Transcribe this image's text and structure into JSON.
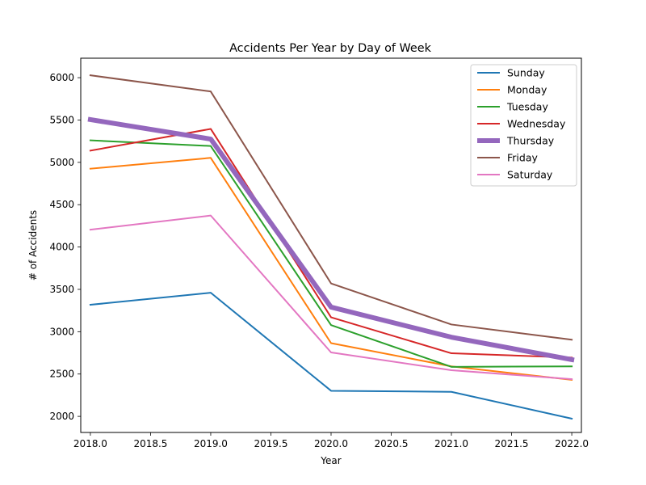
{
  "chart_data": {
    "type": "line",
    "title": "Accidents Per Year by Day of Week",
    "xlabel": "Year",
    "ylabel": "# of Accidents",
    "x": [
      2018,
      2019,
      2020,
      2021,
      2022
    ],
    "xlim": [
      2017.92,
      2022.08
    ],
    "ylim": [
      1810,
      6230
    ],
    "xticks": [
      2018.0,
      2018.5,
      2019.0,
      2019.5,
      2020.0,
      2020.5,
      2021.0,
      2021.5,
      2022.0
    ],
    "xtick_labels": [
      "2018.0",
      "2018.5",
      "2019.0",
      "2019.5",
      "2020.0",
      "2020.5",
      "2021.0",
      "2021.5",
      "2022.0"
    ],
    "yticks": [
      2000,
      2500,
      3000,
      3500,
      4000,
      4500,
      5000,
      5500,
      6000
    ],
    "ytick_labels": [
      "2000",
      "2500",
      "3000",
      "3500",
      "4000",
      "4500",
      "5000",
      "5500",
      "6000"
    ],
    "grid": false,
    "legend_position": "top-right",
    "series": [
      {
        "name": "Sunday",
        "values": [
          3318,
          3460,
          2302,
          2290,
          1973
        ],
        "color": "#1f77b4",
        "emphasis": false
      },
      {
        "name": "Monday",
        "values": [
          4925,
          5053,
          2865,
          2590,
          2432
        ],
        "color": "#ff7f0e",
        "emphasis": false
      },
      {
        "name": "Tuesday",
        "values": [
          5260,
          5193,
          3078,
          2585,
          2590
        ],
        "color": "#2ca02c",
        "emphasis": false
      },
      {
        "name": "Wednesday",
        "values": [
          5138,
          5395,
          3170,
          2745,
          2695
        ],
        "color": "#d62728",
        "emphasis": false
      },
      {
        "name": "Thursday",
        "values": [
          5505,
          5275,
          3290,
          2935,
          2670
        ],
        "color": "#9467bd",
        "emphasis": true
      },
      {
        "name": "Friday",
        "values": [
          6028,
          5837,
          3570,
          3085,
          2905
        ],
        "color": "#8c564b",
        "emphasis": false
      },
      {
        "name": "Saturday",
        "values": [
          4205,
          4372,
          2755,
          2545,
          2440
        ],
        "color": "#e377c2",
        "emphasis": false
      }
    ]
  }
}
